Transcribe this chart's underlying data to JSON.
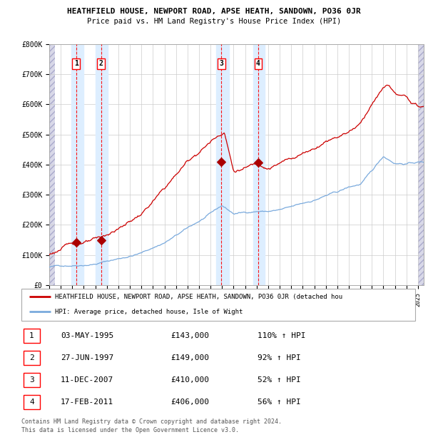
{
  "title": "HEATHFIELD HOUSE, NEWPORT ROAD, APSE HEATH, SANDOWN, PO36 0JR",
  "subtitle": "Price paid vs. HM Land Registry's House Price Index (HPI)",
  "legend_line1": "HEATHFIELD HOUSE, NEWPORT ROAD, APSE HEATH, SANDOWN, PO36 0JR (detached hou",
  "legend_line2": "HPI: Average price, detached house, Isle of Wight",
  "footer1": "Contains HM Land Registry data © Crown copyright and database right 2024.",
  "footer2": "This data is licensed under the Open Government Licence v3.0.",
  "transactions": [
    {
      "num": 1,
      "date": "03-MAY-1995",
      "price": 143000,
      "pct": "110%",
      "dir": "↑"
    },
    {
      "num": 2,
      "date": "27-JUN-1997",
      "price": 149000,
      "pct": "92%",
      "dir": "↑"
    },
    {
      "num": 3,
      "date": "11-DEC-2007",
      "price": 410000,
      "pct": "52%",
      "dir": "↑"
    },
    {
      "num": 4,
      "date": "17-FEB-2011",
      "price": 406000,
      "pct": "56%",
      "dir": "↑"
    }
  ],
  "transaction_dates_decimal": [
    1995.34,
    1997.49,
    2007.94,
    2011.13
  ],
  "transaction_prices": [
    143000,
    149000,
    410000,
    406000
  ],
  "hpi_color": "#7aaadd",
  "price_color": "#cc0000",
  "dot_color": "#aa0000",
  "highlight_color": "#ddeeff",
  "hatch_color": "#d8d8e8",
  "ylim": [
    0,
    800000
  ],
  "yticks": [
    0,
    100000,
    200000,
    300000,
    400000,
    500000,
    600000,
    700000,
    800000
  ],
  "ytick_labels": [
    "£0",
    "£100K",
    "£200K",
    "£300K",
    "£400K",
    "£500K",
    "£600K",
    "£700K",
    "£800K"
  ],
  "xlim_start": 1993.0,
  "xlim_end": 2025.5,
  "hpi_anchors_x": [
    1993,
    1995,
    1997,
    1999,
    2001,
    2003,
    2005,
    2007,
    2008,
    2009,
    2010,
    2011,
    2012,
    2013,
    2014,
    2015,
    2016,
    2017,
    2018,
    2019,
    2020,
    2021,
    2022,
    2023,
    2024,
    2025
  ],
  "hpi_anchors_y": [
    60000,
    68000,
    78000,
    95000,
    115000,
    150000,
    195000,
    240000,
    265000,
    238000,
    242000,
    248000,
    248000,
    252000,
    258000,
    268000,
    280000,
    295000,
    305000,
    320000,
    330000,
    370000,
    420000,
    400000,
    400000,
    405000
  ],
  "price_anchors_x": [
    1993,
    1994,
    1995.34,
    1996,
    1997.49,
    1999,
    2001,
    2003,
    2005,
    2007,
    2007.9,
    2008.2,
    2009,
    2010,
    2011.13,
    2012,
    2013,
    2014,
    2015,
    2016,
    2017,
    2018,
    2019,
    2020,
    2021,
    2022,
    2022.5,
    2023,
    2024,
    2024.5,
    2025
  ],
  "price_anchors_y": [
    100000,
    120000,
    143000,
    145000,
    149000,
    180000,
    230000,
    310000,
    400000,
    470000,
    500000,
    510000,
    380000,
    390000,
    406000,
    400000,
    415000,
    430000,
    450000,
    470000,
    500000,
    520000,
    540000,
    570000,
    640000,
    690000,
    700000,
    670000,
    650000,
    635000,
    620000
  ]
}
